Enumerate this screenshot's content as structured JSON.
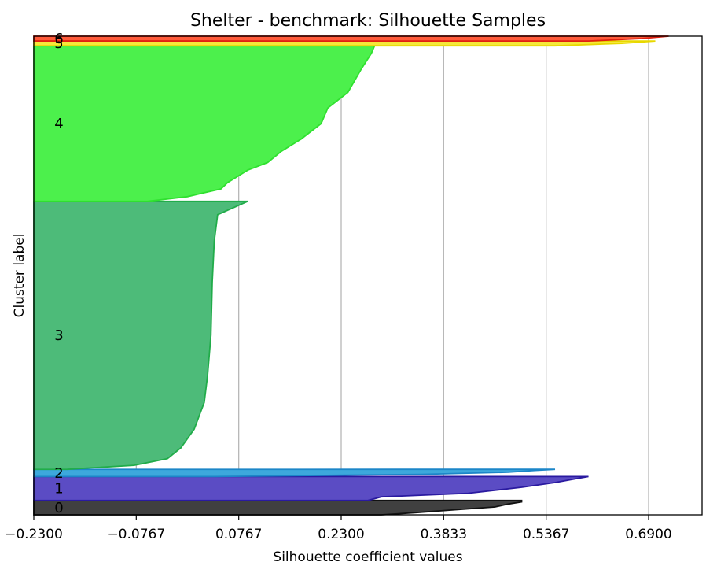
{
  "chart_data": {
    "type": "area",
    "title": "Shelter - benchmark: Silhouette Samples",
    "xlabel": "Silhouette coefficient values",
    "ylabel": "Cluster label",
    "xlim": [
      -0.23,
      0.77
    ],
    "ylim": [
      0,
      1000
    ],
    "xticks": [
      {
        "value": -0.23,
        "label": "−0.2300"
      },
      {
        "value": -0.0767,
        "label": "−0.0767"
      },
      {
        "value": 0.0767,
        "label": "0.0767"
      },
      {
        "value": 0.23,
        "label": "0.2300"
      },
      {
        "value": 0.3833,
        "label": "0.3833"
      },
      {
        "value": 0.5367,
        "label": "0.5367"
      },
      {
        "value": 0.69,
        "label": "0.6900"
      }
    ],
    "grid": "vertical",
    "clusters": [
      {
        "label": "0",
        "fill": "#404040",
        "edge": "#111111",
        "y_start": 0,
        "y_end": 30,
        "profile": [
          [
            0,
            0.29
          ],
          [
            0.15,
            0.34
          ],
          [
            0.35,
            0.4
          ],
          [
            0.55,
            0.46
          ],
          [
            0.75,
            0.48
          ],
          [
            0.9,
            0.5
          ],
          [
            1.0,
            0.5
          ]
        ]
      },
      {
        "label": "1",
        "fill": "#5b4cc4",
        "edge": "#2a1aa0",
        "y_start": 30,
        "y_end": 80,
        "profile": [
          [
            0,
            0.27
          ],
          [
            0.15,
            0.29
          ],
          [
            0.3,
            0.42
          ],
          [
            0.55,
            0.5
          ],
          [
            0.75,
            0.55
          ],
          [
            0.9,
            0.58
          ],
          [
            1.0,
            0.6
          ]
        ]
      },
      {
        "label": "2",
        "fill": "#3da8dc",
        "edge": "#1c86c8",
        "y_start": 80,
        "y_end": 95,
        "profile": [
          [
            0,
            0.04
          ],
          [
            0.3,
            0.35
          ],
          [
            0.6,
            0.48
          ],
          [
            0.85,
            0.52
          ],
          [
            1.0,
            0.55
          ]
        ]
      },
      {
        "label": "3",
        "fill": "#4dbb79",
        "edge": "#21ac4a",
        "y_start": 95,
        "y_end": 655,
        "profile": [
          [
            0,
            -0.18
          ],
          [
            0.015,
            -0.08
          ],
          [
            0.04,
            -0.03
          ],
          [
            0.08,
            -0.01
          ],
          [
            0.15,
            0.01
          ],
          [
            0.25,
            0.025
          ],
          [
            0.35,
            0.03
          ],
          [
            0.5,
            0.035
          ],
          [
            0.7,
            0.037
          ],
          [
            0.85,
            0.04
          ],
          [
            0.95,
            0.045
          ],
          [
            1.0,
            0.09
          ]
        ]
      },
      {
        "label": "4",
        "fill": "#4cf04c",
        "edge": "#2fe02f",
        "y_start": 655,
        "y_end": 980,
        "profile": [
          [
            0,
            -0.06
          ],
          [
            0.03,
            0.0
          ],
          [
            0.08,
            0.05
          ],
          [
            0.12,
            0.06
          ],
          [
            0.2,
            0.09
          ],
          [
            0.25,
            0.12
          ],
          [
            0.32,
            0.14
          ],
          [
            0.4,
            0.17
          ],
          [
            0.5,
            0.2
          ],
          [
            0.6,
            0.21
          ],
          [
            0.7,
            0.24
          ],
          [
            0.85,
            0.26
          ],
          [
            0.95,
            0.275
          ],
          [
            1.0,
            0.28
          ]
        ]
      },
      {
        "label": "5",
        "fill": "#f5e83a",
        "edge": "#e8d800",
        "y_start": 980,
        "y_end": 990,
        "profile": [
          [
            0,
            0.55
          ],
          [
            0.5,
            0.65
          ],
          [
            1.0,
            0.7
          ]
        ]
      },
      {
        "label": "6",
        "fill": "#ff5a3a",
        "edge": "#e02010",
        "y_start": 990,
        "y_end": 1000,
        "profile": [
          [
            0,
            0.6
          ],
          [
            0.5,
            0.68
          ],
          [
            1.0,
            0.72
          ]
        ]
      }
    ]
  }
}
